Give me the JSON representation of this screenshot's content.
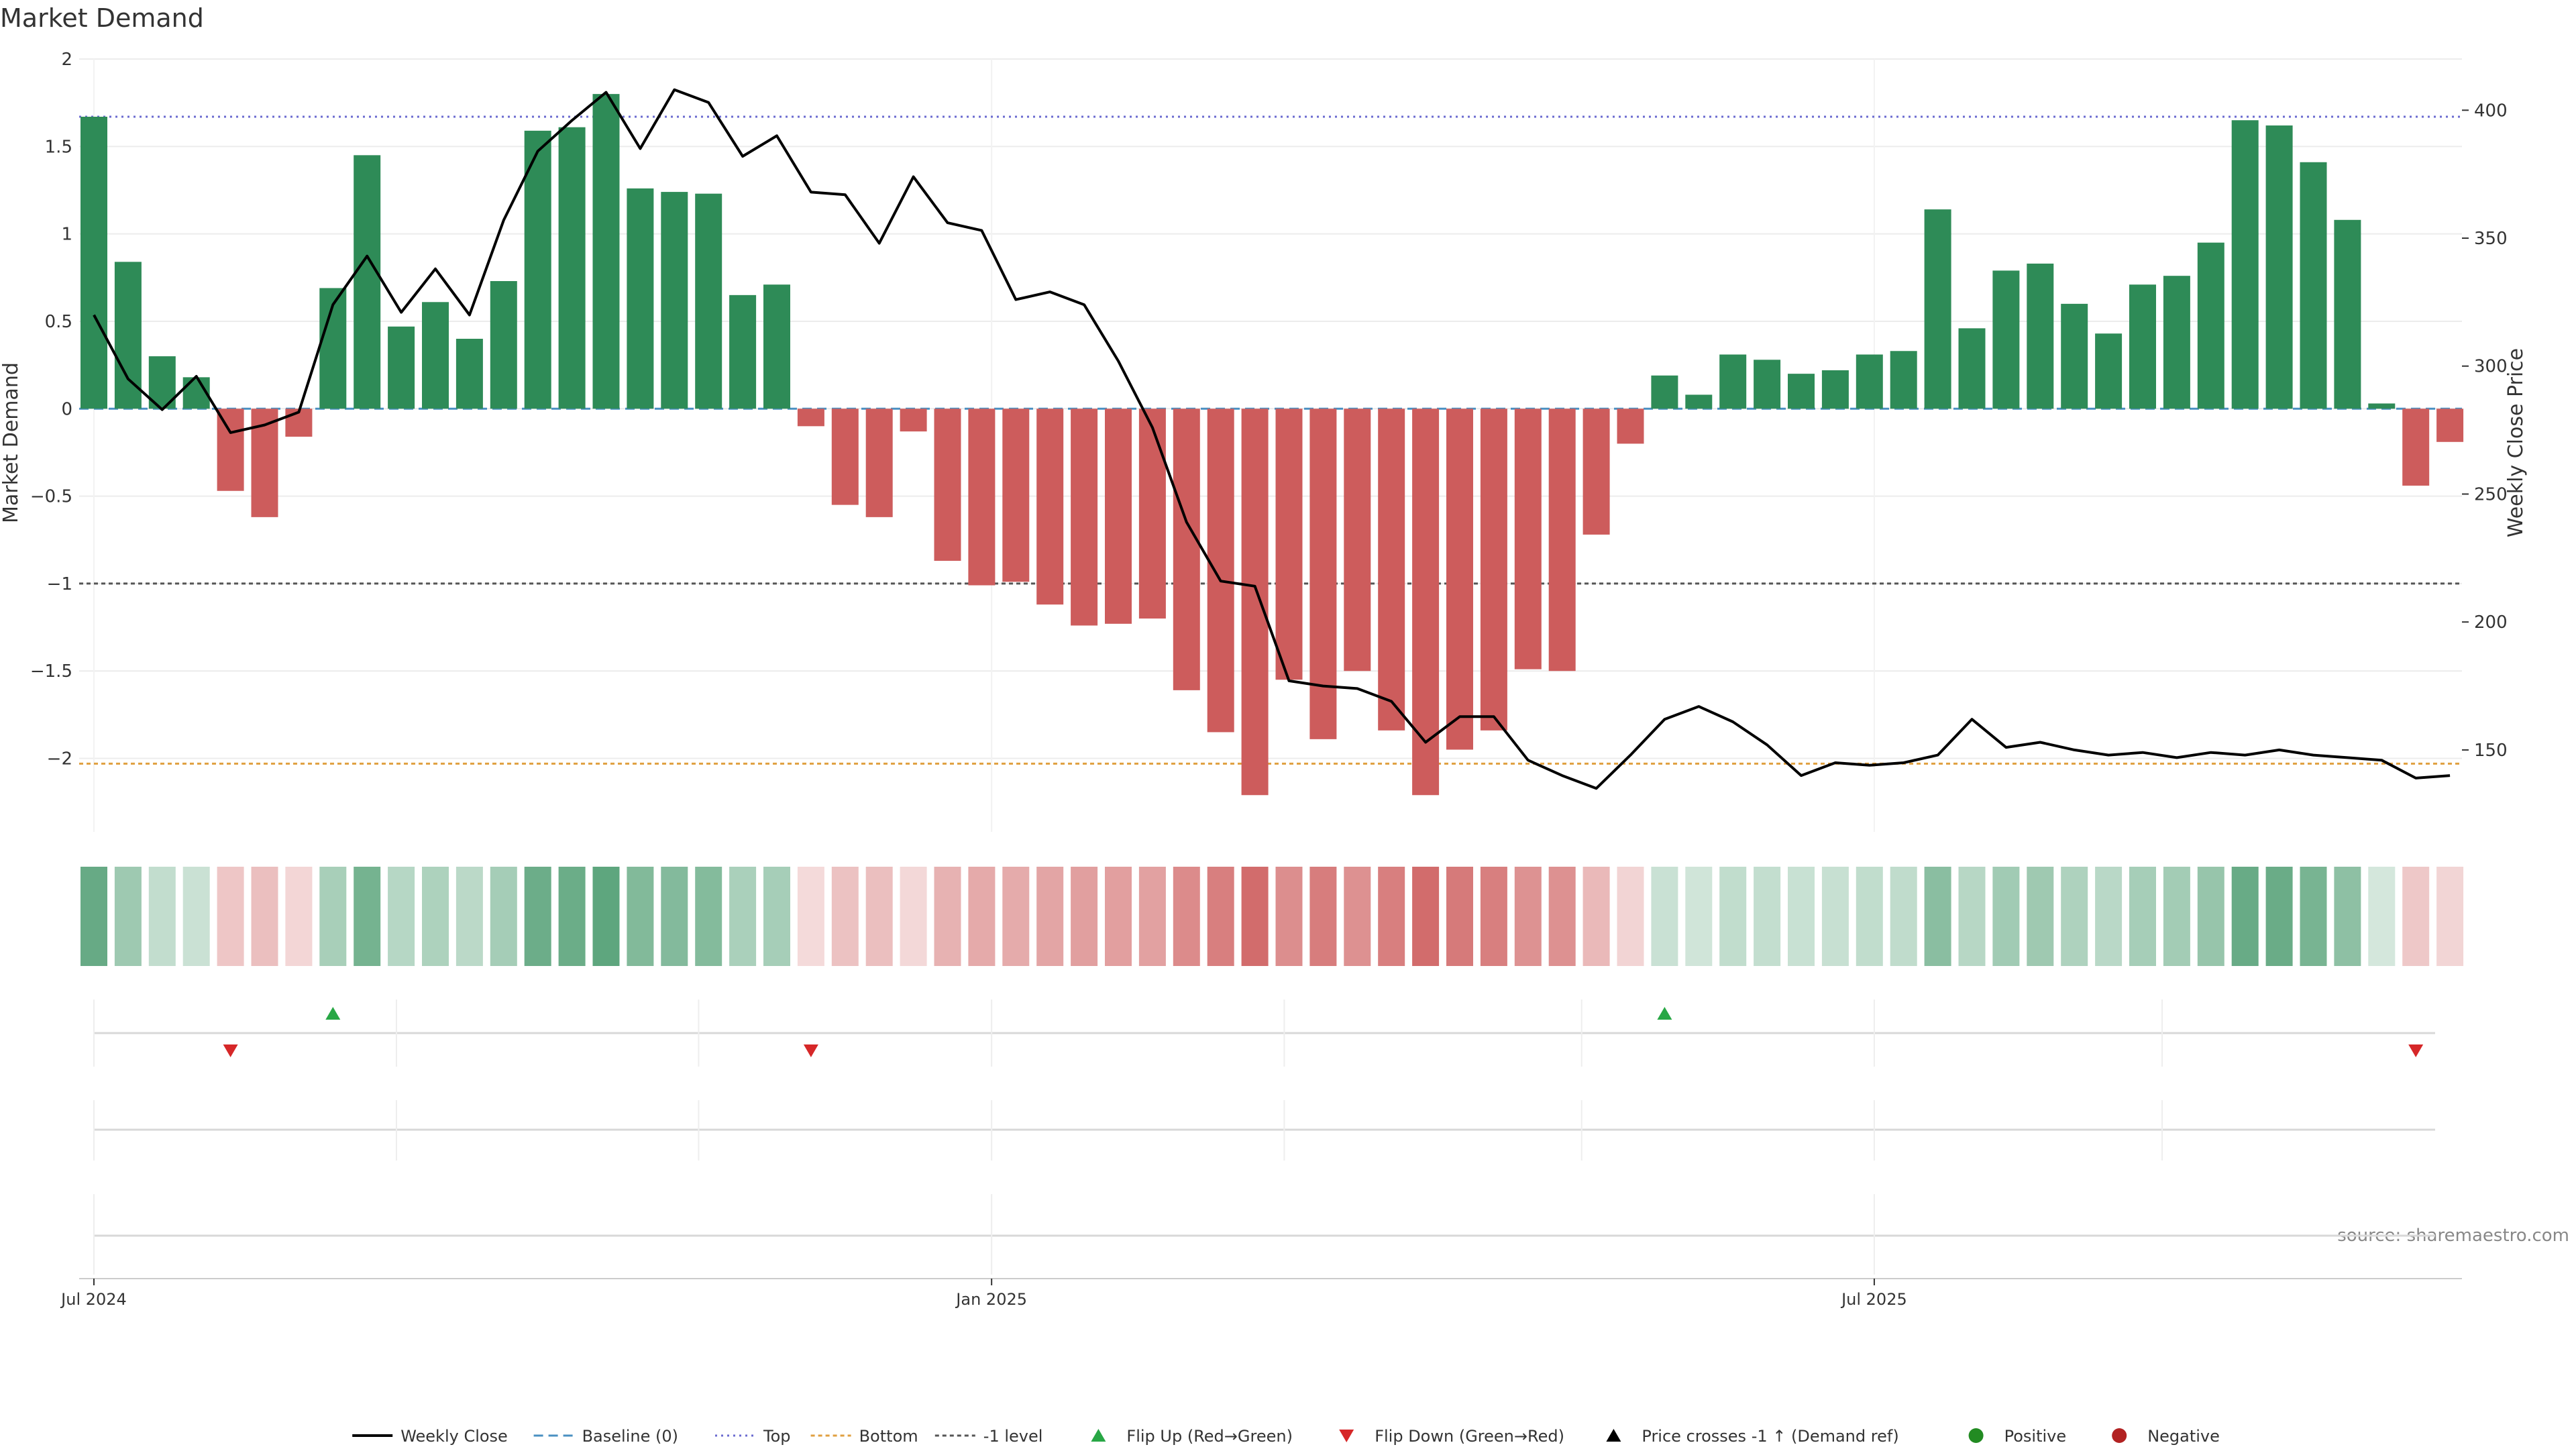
{
  "chart_data": {
    "type": "bar",
    "title": "Market Demand",
    "ylabel": "Market Demand",
    "y2label": "Weekly Close Price",
    "source": "source: sharemaestro.com",
    "ylim": [
      -2.42,
      2.0
    ],
    "y2lim": [
      118,
      420
    ],
    "yticks": [
      2,
      1.5,
      1,
      0.5,
      0,
      -0.5,
      -1,
      -1.5,
      -2
    ],
    "yticklabels": [
      "2",
      "1.5",
      "1",
      "0.5",
      "0",
      "−0.5",
      "−1",
      "−1.5",
      "−2"
    ],
    "y2ticks": [
      400,
      350,
      300,
      250,
      200,
      150
    ],
    "y2ticklabels": [
      "400",
      "350",
      "300",
      "250",
      "200",
      "150"
    ],
    "xticks": [
      {
        "index": 0,
        "label": "Jul 2024"
      },
      {
        "index": 26.29,
        "label": "Jan 2025"
      },
      {
        "index": 52.14,
        "label": "Jul 2025"
      }
    ],
    "grid": true,
    "levels": {
      "top": 1.67,
      "bottom": -2.03,
      "minus1": -1.0,
      "baseline": 0
    },
    "series": [
      {
        "name": "Market Demand",
        "values": [
          1.67,
          0.84,
          0.3,
          0.18,
          -0.47,
          -0.62,
          -0.16,
          0.69,
          1.45,
          0.47,
          0.61,
          0.4,
          0.73,
          1.59,
          1.61,
          1.8,
          1.26,
          1.24,
          1.23,
          0.65,
          0.71,
          -0.1,
          -0.55,
          -0.62,
          -0.13,
          -0.87,
          -1.01,
          -0.99,
          -1.12,
          -1.24,
          -1.23,
          -1.2,
          -1.61,
          -1.85,
          -2.21,
          -1.55,
          -1.89,
          -1.5,
          -1.84,
          -2.21,
          -1.95,
          -1.84,
          -1.49,
          -1.5,
          -0.72,
          -0.2,
          0.19,
          0.08,
          0.31,
          0.28,
          0.2,
          0.22,
          0.31,
          0.33,
          1.14,
          0.46,
          0.79,
          0.83,
          0.6,
          0.43,
          0.71,
          0.76,
          0.95,
          1.65,
          1.62,
          1.41,
          1.08,
          0.03,
          -0.44,
          -0.19
        ]
      },
      {
        "name": "Weekly Close",
        "values": [
          320,
          295,
          283,
          296,
          274,
          277,
          282,
          324,
          343,
          321,
          338,
          320,
          357,
          384,
          396,
          407,
          385,
          408,
          403,
          382,
          390,
          368,
          367,
          348,
          374,
          356,
          353,
          326,
          329,
          324,
          302,
          276,
          239,
          216,
          214,
          177,
          175,
          174,
          169,
          153,
          163,
          163,
          146,
          140,
          135,
          148,
          162,
          167,
          161,
          152,
          140,
          145,
          144,
          145,
          148,
          162,
          151,
          153,
          150,
          148,
          149,
          147,
          149,
          148,
          150,
          148,
          147,
          146,
          139,
          140
        ]
      }
    ],
    "flip_up": [
      7,
      46
    ],
    "flip_down": [
      4,
      21,
      68
    ],
    "legend": {
      "placement": "bottom-center",
      "entries": [
        "Weekly Close",
        "Baseline (0)",
        "Top",
        "Bottom",
        "-1 level",
        "Flip Up (Red→Green)",
        "Flip Down (Green→Red)",
        "Price crosses -1 ↑ (Demand ref)",
        "Positive",
        "Negative"
      ]
    },
    "colors": {
      "positive": "#2e8b57",
      "negative": "#cd5c5c",
      "line": "#000000",
      "baseline": "#4a90c2",
      "top": "#6b6bd0",
      "bottom": "#e0a040",
      "minus1": "#555555",
      "flip_up": "#28a745",
      "flip_down": "#d62728",
      "pos_dot": "#228b22",
      "neg_dot": "#b22222"
    }
  }
}
